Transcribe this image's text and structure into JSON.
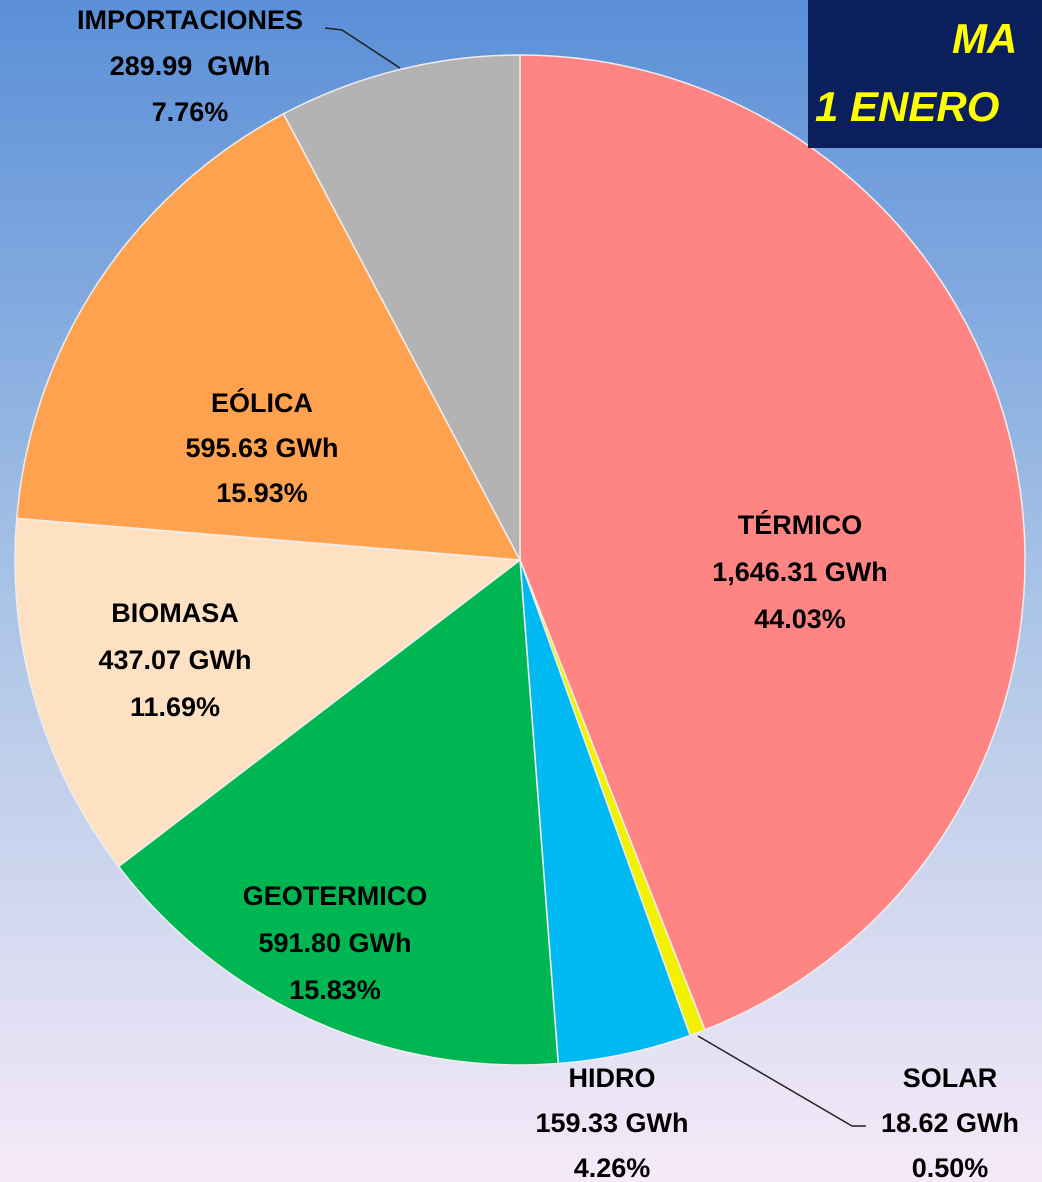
{
  "chart_data": {
    "type": "pie",
    "title_lines": [
      "MA",
      "1 ENERO"
    ],
    "categories": [
      "TÉRMICO",
      "SOLAR",
      "HIDRO",
      "GEOTERMICO",
      "BIOMASA",
      "EÓLICA",
      "IMPORTACIONES"
    ],
    "values": [
      1646.31,
      18.62,
      159.33,
      591.8,
      437.07,
      595.63,
      289.99
    ],
    "value_labels": [
      "1,646.31 GWh",
      "18.62 GWh",
      "159.33 GWh",
      "591.80 GWh",
      "437.07 GWh",
      "595.63 GWh",
      "289.99  GWh"
    ],
    "percent_labels": [
      "44.03%",
      "0.50%",
      "4.26%",
      "15.83%",
      "11.69%",
      "15.93%",
      "7.76%"
    ],
    "colors": [
      "#ff8585",
      "#f2f200",
      "#00b9f2",
      "#00b652",
      "#fde1c2",
      "#ffa24f",
      "#b3b3b3"
    ]
  }
}
